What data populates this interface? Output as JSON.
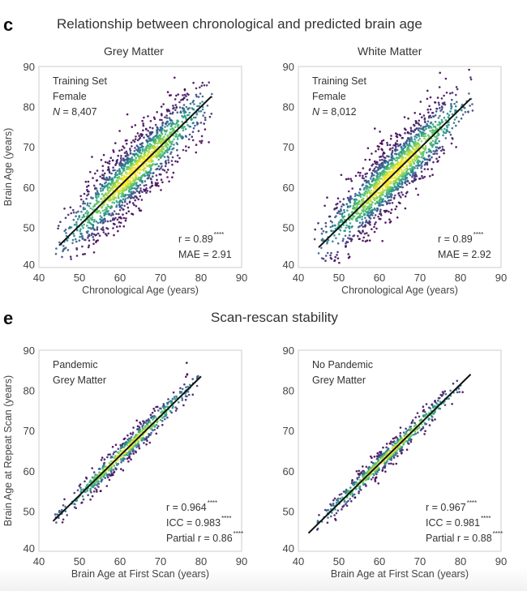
{
  "panels": {
    "c": {
      "letter": "c",
      "title": "Relationship between chronological and predicted brain age"
    },
    "e": {
      "letter": "e",
      "title": "Scan-rescan stability"
    }
  },
  "colormap": [
    "#440154",
    "#3b528b",
    "#21918c",
    "#5ec962",
    "#fde725"
  ],
  "fit_line_color": "#111111",
  "chart_data": [
    {
      "id": "grey-matter-training",
      "type": "scatter",
      "title": "Grey Matter",
      "xlabel": "Chronological Age (years)",
      "ylabel": "Brain Age (years)",
      "xlim": [
        40,
        90
      ],
      "ylim": [
        40,
        90
      ],
      "xticks": [
        40,
        50,
        60,
        70,
        80,
        90
      ],
      "yticks": [
        40,
        50,
        60,
        70,
        80,
        90
      ],
      "grid": false,
      "annotations": [
        "Training Set",
        "Female",
        "N = 8,407"
      ],
      "stats": [
        {
          "label": "r = 0.89",
          "sig": "****"
        },
        {
          "label": "MAE = 2.91",
          "sig": ""
        }
      ],
      "n": 8407,
      "fit_line": {
        "x": [
          45,
          82.5
        ],
        "y": [
          45.5,
          82.5
        ]
      },
      "cloud": {
        "x_range": [
          44,
          83
        ],
        "y_spread": 4.2,
        "y_min": 42,
        "y_max": 89
      },
      "color_encoding": "point density (viridis)"
    },
    {
      "id": "white-matter-training",
      "type": "scatter",
      "title": "White Matter",
      "xlabel": "Chronological Age (years)",
      "ylabel": "",
      "xlim": [
        40,
        90
      ],
      "ylim": [
        40,
        90
      ],
      "xticks": [
        40,
        50,
        60,
        70,
        80,
        90
      ],
      "yticks": [
        40,
        50,
        60,
        70,
        80,
        90
      ],
      "grid": false,
      "annotations": [
        "Training Set",
        "Female",
        "N = 8,012"
      ],
      "stats": [
        {
          "label": "r = 0.89",
          "sig": "****"
        },
        {
          "label": "MAE = 2.92",
          "sig": ""
        }
      ],
      "n": 8012,
      "fit_line": {
        "x": [
          45,
          82.5
        ],
        "y": [
          45,
          82
        ]
      },
      "cloud": {
        "x_range": [
          44,
          83
        ],
        "y_spread": 4.2,
        "y_min": 41,
        "y_max": 90
      },
      "color_encoding": "point density (viridis)"
    },
    {
      "id": "pandemic-grey-matter",
      "type": "scatter",
      "title": "",
      "xlabel": "Brain Age at First Scan (years)",
      "ylabel": "Brain Age at Repeat Scan (years)",
      "xlim": [
        40,
        90
      ],
      "ylim": [
        40,
        90
      ],
      "xticks": [
        40,
        50,
        60,
        70,
        80,
        90
      ],
      "yticks": [
        40,
        50,
        60,
        70,
        80,
        90
      ],
      "grid": false,
      "annotations": [
        "Pandemic",
        "Grey Matter"
      ],
      "stats": [
        {
          "label": "r = 0.964",
          "sig": "****"
        },
        {
          "label": "ICC = 0.983",
          "sig": "****"
        },
        {
          "label": "Partial r = 0.86",
          "sig": "****"
        }
      ],
      "fit_line": {
        "x": [
          43.5,
          80
        ],
        "y": [
          47.5,
          83.5
        ]
      },
      "cloud": {
        "x_range": [
          44,
          80
        ],
        "y_spread": 1.6,
        "y_min": 47,
        "y_max": 89
      },
      "color_encoding": "point density (viridis)"
    },
    {
      "id": "no-pandemic-grey-matter",
      "type": "scatter",
      "title": "",
      "xlabel": "Brain Age at First Scan (years)",
      "ylabel": "",
      "xlim": [
        40,
        90
      ],
      "ylim": [
        40,
        90
      ],
      "xticks": [
        40,
        50,
        60,
        70,
        80,
        90
      ],
      "yticks": [
        40,
        50,
        60,
        70,
        80,
        90
      ],
      "grid": false,
      "annotations": [
        "No Pandemic",
        "Grey Matter"
      ],
      "stats": [
        {
          "label": "r = 0.967",
          "sig": "****"
        },
        {
          "label": "ICC = 0.981",
          "sig": "****"
        },
        {
          "label": "Partial r = 0.88",
          "sig": "****"
        }
      ],
      "fit_line": {
        "x": [
          42.5,
          82.5
        ],
        "y": [
          44.5,
          84
        ]
      },
      "cloud": {
        "x_range": [
          43,
          82
        ],
        "y_spread": 1.4,
        "y_min": 44,
        "y_max": 85
      },
      "color_encoding": "point density (viridis)"
    }
  ]
}
